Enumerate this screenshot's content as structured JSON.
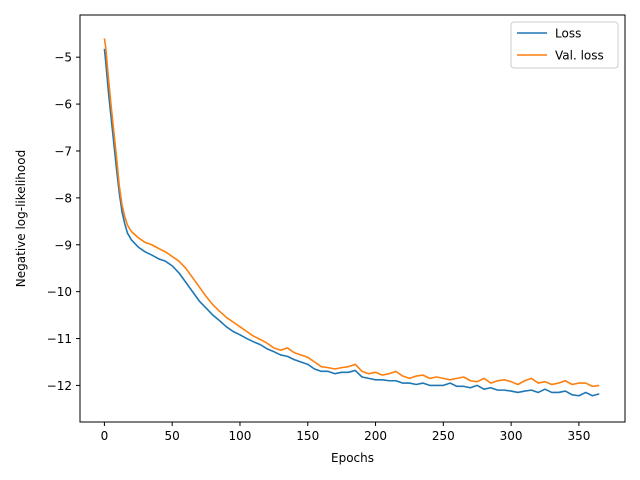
{
  "chart_data": {
    "type": "line",
    "xlabel": "Epochs",
    "ylabel": "Negative log-likelihood",
    "xlim": [
      -18,
      384
    ],
    "ylim": [
      -12.78,
      -4.1
    ],
    "xticks": [
      0,
      50,
      100,
      150,
      200,
      250,
      300,
      350
    ],
    "yticks": [
      -12,
      -11,
      -10,
      -9,
      -8,
      -7,
      -6,
      -5
    ],
    "ytick_labels": [
      "−12",
      "−11",
      "−10",
      "−9",
      "−8",
      "−7",
      "−6",
      "−5"
    ],
    "grid": false,
    "legend_position": "top-right",
    "series": [
      {
        "name": "Loss",
        "color": "#1f77b4",
        "x": [
          0,
          1,
          3,
          5,
          7,
          9,
          11,
          13,
          15,
          17,
          20,
          25,
          30,
          35,
          40,
          45,
          50,
          55,
          60,
          65,
          70,
          75,
          80,
          85,
          90,
          95,
          100,
          105,
          110,
          115,
          120,
          125,
          130,
          135,
          140,
          145,
          150,
          155,
          160,
          165,
          170,
          175,
          180,
          185,
          190,
          195,
          200,
          205,
          210,
          215,
          220,
          225,
          230,
          235,
          240,
          245,
          250,
          255,
          260,
          265,
          270,
          275,
          280,
          285,
          290,
          295,
          300,
          305,
          310,
          315,
          320,
          325,
          330,
          335,
          340,
          345,
          350,
          355,
          360,
          365
        ],
        "y": [
          -4.82,
          -5.1,
          -5.75,
          -6.3,
          -6.85,
          -7.4,
          -7.9,
          -8.3,
          -8.55,
          -8.75,
          -8.9,
          -9.05,
          -9.15,
          -9.22,
          -9.3,
          -9.35,
          -9.45,
          -9.6,
          -9.8,
          -10.0,
          -10.2,
          -10.35,
          -10.5,
          -10.62,
          -10.75,
          -10.85,
          -10.92,
          -11.0,
          -11.07,
          -11.13,
          -11.22,
          -11.28,
          -11.35,
          -11.38,
          -11.45,
          -11.5,
          -11.55,
          -11.65,
          -11.7,
          -11.7,
          -11.75,
          -11.72,
          -11.72,
          -11.68,
          -11.82,
          -11.85,
          -11.88,
          -11.88,
          -11.9,
          -11.9,
          -11.95,
          -11.95,
          -11.98,
          -11.95,
          -12.0,
          -12.0,
          -12.0,
          -11.95,
          -12.02,
          -12.02,
          -12.05,
          -12.0,
          -12.08,
          -12.05,
          -12.1,
          -12.1,
          -12.12,
          -12.15,
          -12.12,
          -12.1,
          -12.15,
          -12.08,
          -12.15,
          -12.15,
          -12.12,
          -12.2,
          -12.22,
          -12.15,
          -12.22,
          -12.18
        ]
      },
      {
        "name": "Val. loss",
        "color": "#ff7f0e",
        "x": [
          0,
          1,
          3,
          5,
          7,
          9,
          11,
          13,
          15,
          17,
          20,
          25,
          30,
          35,
          40,
          45,
          50,
          55,
          60,
          65,
          70,
          75,
          80,
          85,
          90,
          95,
          100,
          105,
          110,
          115,
          120,
          125,
          130,
          135,
          140,
          145,
          150,
          155,
          160,
          165,
          170,
          175,
          180,
          185,
          190,
          195,
          200,
          205,
          210,
          215,
          220,
          225,
          230,
          235,
          240,
          245,
          250,
          255,
          260,
          265,
          270,
          275,
          280,
          285,
          290,
          295,
          300,
          305,
          310,
          315,
          320,
          325,
          330,
          335,
          340,
          345,
          350,
          355,
          360,
          365
        ],
        "y": [
          -4.6,
          -4.8,
          -5.45,
          -6.05,
          -6.6,
          -7.15,
          -7.75,
          -8.15,
          -8.4,
          -8.58,
          -8.72,
          -8.85,
          -8.95,
          -9.0,
          -9.08,
          -9.15,
          -9.25,
          -9.35,
          -9.5,
          -9.7,
          -9.9,
          -10.1,
          -10.28,
          -10.42,
          -10.55,
          -10.65,
          -10.75,
          -10.85,
          -10.95,
          -11.02,
          -11.1,
          -11.2,
          -11.25,
          -11.2,
          -11.3,
          -11.35,
          -11.4,
          -11.5,
          -11.6,
          -11.62,
          -11.65,
          -11.62,
          -11.6,
          -11.55,
          -11.7,
          -11.75,
          -11.72,
          -11.78,
          -11.75,
          -11.7,
          -11.8,
          -11.85,
          -11.8,
          -11.78,
          -11.85,
          -11.82,
          -11.85,
          -11.88,
          -11.85,
          -11.82,
          -11.9,
          -11.92,
          -11.85,
          -11.95,
          -11.9,
          -11.88,
          -11.92,
          -11.98,
          -11.9,
          -11.85,
          -11.95,
          -11.92,
          -11.98,
          -11.95,
          -11.9,
          -11.98,
          -11.95,
          -11.95,
          -12.02,
          -12.0
        ]
      }
    ]
  }
}
